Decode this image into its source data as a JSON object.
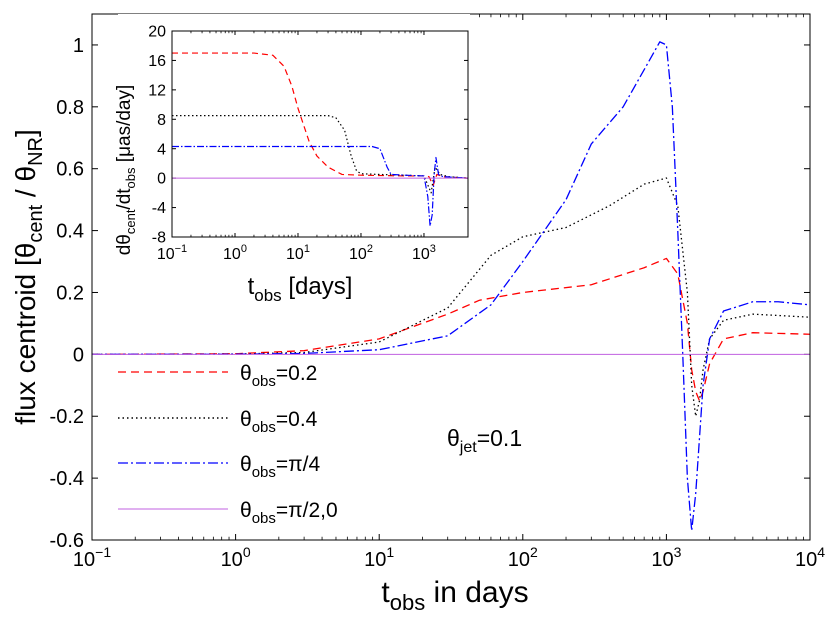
{
  "chart_data": [
    {
      "id": "main",
      "type": "line",
      "xscale": "log",
      "xlim": [
        0.1,
        10000
      ],
      "ylim": [
        -0.6,
        1.1
      ],
      "xlabel": {
        "main": "t",
        "sub": "obs",
        "rest": " in days"
      },
      "ylabel": {
        "pre": "flux centroid [θ",
        "sub1": "cent",
        "mid": " / θ",
        "sub2": "NR",
        "post": "]"
      },
      "xticks": [
        {
          "value": 0.1,
          "base": "10",
          "exp": "−1"
        },
        {
          "value": 1,
          "base": "10",
          "exp": "0"
        },
        {
          "value": 10,
          "base": "10",
          "exp": "1"
        },
        {
          "value": 100,
          "base": "10",
          "exp": "2"
        },
        {
          "value": 1000,
          "base": "10",
          "exp": "3"
        },
        {
          "value": 10000,
          "base": "10",
          "exp": "4"
        }
      ],
      "yticks": [
        {
          "value": -0.6,
          "label": "-0.6"
        },
        {
          "value": -0.4,
          "label": "-0.4"
        },
        {
          "value": -0.2,
          "label": "-0.2"
        },
        {
          "value": 0,
          "label": "0"
        },
        {
          "value": 0.2,
          "label": "0.2"
        },
        {
          "value": 0.4,
          "label": "0.4"
        },
        {
          "value": 0.6,
          "label": "0.6"
        },
        {
          "value": 0.8,
          "label": "0.8"
        },
        {
          "value": 1,
          "label": "1"
        }
      ],
      "annotation": {
        "pre": "θ",
        "sub": "jet",
        "post": "=0.1"
      },
      "series": [
        {
          "key": "s02",
          "legend_pre": "θ",
          "legend_sub": "obs",
          "legend_post": "=0.2",
          "color": "#ff0000",
          "dash": "8,5",
          "x": [
            0.1,
            1,
            3,
            10,
            30,
            50,
            100,
            300,
            700,
            1000,
            1200,
            1400,
            1500,
            1600,
            1700,
            1800,
            2000,
            2500,
            4000,
            10000
          ],
          "y": [
            0,
            0.002,
            0.012,
            0.05,
            0.13,
            0.175,
            0.2,
            0.225,
            0.28,
            0.31,
            0.26,
            0.1,
            -0.05,
            -0.12,
            -0.15,
            -0.12,
            -0.03,
            0.05,
            0.07,
            0.065
          ]
        },
        {
          "key": "s04",
          "legend_pre": "θ",
          "legend_sub": "obs",
          "legend_post": "=0.4",
          "color": "#000000",
          "dash": "1.5,3",
          "x": [
            0.1,
            1,
            3,
            10,
            30,
            60,
            100,
            200,
            400,
            700,
            1000,
            1200,
            1400,
            1500,
            1600,
            1700,
            1800,
            2000,
            2500,
            4000,
            10000
          ],
          "y": [
            0,
            0.001,
            0.006,
            0.04,
            0.15,
            0.32,
            0.38,
            0.41,
            0.48,
            0.55,
            0.57,
            0.48,
            0.2,
            -0.1,
            -0.2,
            -0.15,
            -0.05,
            0.05,
            0.11,
            0.13,
            0.12
          ]
        },
        {
          "key": "s45",
          "legend_pre": "θ",
          "legend_sub": "obs",
          "legend_post": "=π/4",
          "color": "#0000ff",
          "dash": "10,3,2,3",
          "x": [
            0.1,
            1,
            3,
            10,
            30,
            60,
            100,
            200,
            300,
            500,
            700,
            900,
            1000,
            1100,
            1200,
            1300,
            1400,
            1500,
            1600,
            1800,
            2000,
            2500,
            4000,
            6000,
            10000
          ],
          "y": [
            0,
            0.0005,
            0.003,
            0.015,
            0.06,
            0.16,
            0.3,
            0.5,
            0.68,
            0.8,
            0.92,
            1.01,
            1.0,
            0.8,
            0.4,
            0.0,
            -0.4,
            -0.57,
            -0.45,
            -0.1,
            0.05,
            0.14,
            0.17,
            0.17,
            0.16
          ]
        },
        {
          "key": "s90",
          "legend_pre": "θ",
          "legend_sub": "obs",
          "legend_post": "=π/2,0",
          "color": "#c060e0",
          "dash": "",
          "x": [
            0.1,
            10000
          ],
          "y": [
            0,
            0
          ]
        }
      ]
    },
    {
      "id": "inset",
      "type": "line",
      "xscale": "log",
      "xlim": [
        0.1,
        5000
      ],
      "ylim": [
        -8,
        20
      ],
      "xlabel": {
        "main": "t",
        "sub": "obs",
        "rest": " [days]"
      },
      "ylabel": {
        "pre": "dθ",
        "sub1": "cent",
        "mid": "/dt",
        "sub2": "obs",
        "post": " [μas/day]"
      },
      "xticks": [
        {
          "value": 0.1,
          "base": "10",
          "exp": "−1"
        },
        {
          "value": 1,
          "base": "10",
          "exp": "0"
        },
        {
          "value": 10,
          "base": "10",
          "exp": "1"
        },
        {
          "value": 100,
          "base": "10",
          "exp": "2"
        },
        {
          "value": 1000,
          "base": "10",
          "exp": "3"
        }
      ],
      "yticks": [
        {
          "value": -8,
          "label": "-8"
        },
        {
          "value": -4,
          "label": "-4"
        },
        {
          "value": 0,
          "label": "0"
        },
        {
          "value": 4,
          "label": "4"
        },
        {
          "value": 8,
          "label": "8"
        },
        {
          "value": 12,
          "label": "12"
        },
        {
          "value": 16,
          "label": "16"
        },
        {
          "value": 20,
          "label": "20"
        }
      ],
      "series": [
        {
          "key": "i02",
          "color": "#ff0000",
          "dash": "6,4",
          "x": [
            0.1,
            2,
            4,
            6,
            8,
            10,
            15,
            20,
            30,
            50,
            100,
            500,
            1000,
            1200,
            1400,
            1600,
            2000,
            5000
          ],
          "y": [
            17,
            17,
            16.7,
            15.2,
            12.5,
            9.5,
            5,
            3,
            1.5,
            0.5,
            0.4,
            0.3,
            0.3,
            0.2,
            -1,
            0.5,
            0.2,
            0
          ]
        },
        {
          "key": "i04",
          "color": "#000000",
          "dash": "1.5,2.5",
          "x": [
            0.1,
            30,
            40,
            55,
            70,
            85,
            100,
            200,
            500,
            1000,
            1300,
            1500,
            1800,
            2500,
            5000
          ],
          "y": [
            8.5,
            8.5,
            8.2,
            6.5,
            3,
            1,
            0.6,
            0.5,
            0.4,
            0.3,
            -2,
            1.5,
            0.5,
            0.2,
            0
          ]
        },
        {
          "key": "i45",
          "color": "#0000ff",
          "dash": "7,2,1.5,2",
          "x": [
            0.1,
            150,
            200,
            260,
            300,
            500,
            1000,
            1150,
            1250,
            1350,
            1450,
            1550,
            1700,
            2000,
            5000
          ],
          "y": [
            4.3,
            4.3,
            4,
            1.5,
            0.5,
            0.4,
            0.3,
            -2.5,
            -6.5,
            -5,
            0.5,
            2.8,
            0.5,
            0.2,
            0
          ]
        },
        {
          "key": "i90",
          "color": "#c060e0",
          "dash": "",
          "x": [
            0.1,
            5000
          ],
          "y": [
            0,
            0
          ]
        }
      ]
    }
  ]
}
